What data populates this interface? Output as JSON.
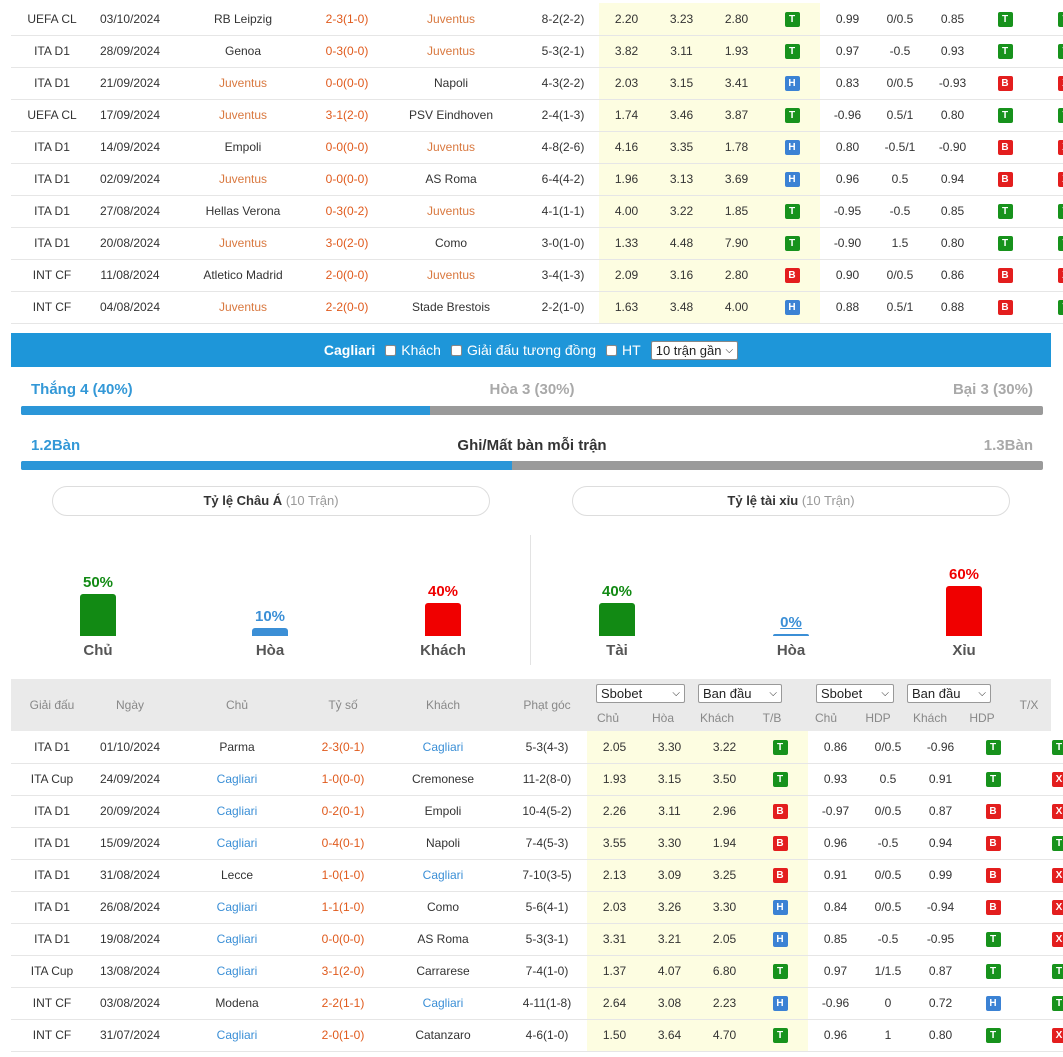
{
  "top_matches": [
    {
      "league": "UEFA CL",
      "date": "03/10/2024",
      "home": "RB Leipzig",
      "home_hl": false,
      "score": "2-3(1-0)",
      "away": "Juventus",
      "away_hl": true,
      "corner": "8-2(2-2)",
      "o1": "2.20",
      "o2": "3.23",
      "o3": "2.80",
      "tb": "T",
      "h1": "0.99",
      "h2": "0/0.5",
      "h3": "0.85",
      "hdp": "T",
      "tx": "T"
    },
    {
      "league": "ITA D1",
      "date": "28/09/2024",
      "home": "Genoa",
      "home_hl": false,
      "score": "0-3(0-0)",
      "away": "Juventus",
      "away_hl": true,
      "corner": "5-3(2-1)",
      "o1": "3.82",
      "o2": "3.11",
      "o3": "1.93",
      "tb": "T",
      "h1": "0.97",
      "h2": "-0.5",
      "h3": "0.93",
      "hdp": "T",
      "tx": "T"
    },
    {
      "league": "ITA D1",
      "date": "21/09/2024",
      "home": "Juventus",
      "home_hl": true,
      "score": "0-0(0-0)",
      "away": "Napoli",
      "away_hl": false,
      "corner": "4-3(2-2)",
      "o1": "2.03",
      "o2": "3.15",
      "o3": "3.41",
      "tb": "H",
      "h1": "0.83",
      "h2": "0/0.5",
      "h3": "-0.93",
      "hdp": "B",
      "tx": "X"
    },
    {
      "league": "UEFA CL",
      "date": "17/09/2024",
      "home": "Juventus",
      "home_hl": true,
      "score": "3-1(2-0)",
      "away": "PSV Eindhoven",
      "away_hl": false,
      "corner": "2-4(1-3)",
      "o1": "1.74",
      "o2": "3.46",
      "o3": "3.87",
      "tb": "T",
      "h1": "-0.96",
      "h2": "0.5/1",
      "h3": "0.80",
      "hdp": "T",
      "tx": "T"
    },
    {
      "league": "ITA D1",
      "date": "14/09/2024",
      "home": "Empoli",
      "home_hl": false,
      "score": "0-0(0-0)",
      "away": "Juventus",
      "away_hl": true,
      "corner": "4-8(2-6)",
      "o1": "4.16",
      "o2": "3.35",
      "o3": "1.78",
      "tb": "H",
      "h1": "0.80",
      "h2": "-0.5/1",
      "h3": "-0.90",
      "hdp": "B",
      "tx": "X"
    },
    {
      "league": "ITA D1",
      "date": "02/09/2024",
      "home": "Juventus",
      "home_hl": true,
      "score": "0-0(0-0)",
      "away": "AS Roma",
      "away_hl": false,
      "corner": "6-4(4-2)",
      "o1": "1.96",
      "o2": "3.13",
      "o3": "3.69",
      "tb": "H",
      "h1": "0.96",
      "h2": "0.5",
      "h3": "0.94",
      "hdp": "B",
      "tx": "X"
    },
    {
      "league": "ITA D1",
      "date": "27/08/2024",
      "home": "Hellas Verona",
      "home_hl": false,
      "score": "0-3(0-2)",
      "away": "Juventus",
      "away_hl": true,
      "corner": "4-1(1-1)",
      "o1": "4.00",
      "o2": "3.22",
      "o3": "1.85",
      "tb": "T",
      "h1": "-0.95",
      "h2": "-0.5",
      "h3": "0.85",
      "hdp": "T",
      "tx": "T"
    },
    {
      "league": "ITA D1",
      "date": "20/08/2024",
      "home": "Juventus",
      "home_hl": true,
      "score": "3-0(2-0)",
      "away": "Como",
      "away_hl": false,
      "corner": "3-0(1-0)",
      "o1": "1.33",
      "o2": "4.48",
      "o3": "7.90",
      "tb": "T",
      "h1": "-0.90",
      "h2": "1.5",
      "h3": "0.80",
      "hdp": "T",
      "tx": "T"
    },
    {
      "league": "INT CF",
      "date": "11/08/2024",
      "home": "Atletico Madrid",
      "home_hl": false,
      "score": "2-0(0-0)",
      "away": "Juventus",
      "away_hl": true,
      "corner": "3-4(1-3)",
      "o1": "2.09",
      "o2": "3.16",
      "o3": "2.80",
      "tb": "B",
      "h1": "0.90",
      "h2": "0/0.5",
      "h3": "0.86",
      "hdp": "B",
      "tx": "X"
    },
    {
      "league": "INT CF",
      "date": "04/08/2024",
      "home": "Juventus",
      "home_hl": true,
      "score": "2-2(0-0)",
      "away": "Stade Brestois",
      "away_hl": false,
      "corner": "2-2(1-0)",
      "o1": "1.63",
      "o2": "3.48",
      "o3": "4.00",
      "tb": "H",
      "h1": "0.88",
      "h2": "0.5/1",
      "h3": "0.88",
      "hdp": "B",
      "tx": "T"
    }
  ],
  "filter": {
    "team": "Cagliari",
    "away_label": "Khách",
    "similar_label": "Giải đấu tương đồng",
    "ht_label": "HT",
    "recent_select": "10 trận gần"
  },
  "summary": {
    "win": "Thắng 4 (40%)",
    "draw": "Hòa 3 (30%)",
    "loss": "Bại 3 (30%)",
    "win_frac": 0.4,
    "goals_for": "1.2Bàn",
    "goals_title": "Ghi/Mất bàn mỗi trận",
    "goals_against": "1.3Bàn",
    "goals_frac": 0.48
  },
  "asia": {
    "title": "Tỷ lệ Châu Á",
    "sub": "(10 Trận)",
    "items": [
      {
        "pct": "50%",
        "label": "Chủ",
        "value": 50,
        "color": "#128a14"
      },
      {
        "pct": "10%",
        "label": "Hòa",
        "value": 10,
        "color": "#3b8fd6"
      },
      {
        "pct": "40%",
        "label": "Khách",
        "value": 40,
        "color": "#f00000"
      }
    ]
  },
  "overunder": {
    "title": "Tỷ lệ tài xỉu",
    "sub": "(10 Trận)",
    "items": [
      {
        "pct": "40%",
        "label": "Tài",
        "value": 40,
        "color": "#128a14"
      },
      {
        "pct": "0%",
        "label": "Hòa",
        "value": 0,
        "color": "#3b8fd6"
      },
      {
        "pct": "60%",
        "label": "Xỉu",
        "value": 60,
        "color": "#f00000"
      }
    ]
  },
  "header": {
    "league": "Giải đấu",
    "date": "Ngày",
    "home": "Chủ",
    "score": "Tỷ số",
    "away": "Khách",
    "corner": "Phạt góc",
    "sel1": "Sbobet",
    "sel2": "Ban đầu",
    "sel3": "Sbobet",
    "sel4": "Ban đầu",
    "sub_home": "Chủ",
    "sub_draw": "Hòa",
    "sub_away": "Khách",
    "sub_tb": "T/B",
    "sub_home2": "Chủ",
    "sub_hdp": "HDP",
    "sub_away2": "Khách",
    "sub_hdp2": "HDP",
    "tx": "T/X"
  },
  "bottom_matches": [
    {
      "league": "ITA D1",
      "date": "01/10/2024",
      "home": "Parma",
      "home_hl": false,
      "score": "2-3(0-1)",
      "away": "Cagliari",
      "away_hl": true,
      "corner": "5-3(4-3)",
      "o1": "2.05",
      "o2": "3.30",
      "o3": "3.22",
      "tb": "T",
      "h1": "0.86",
      "h2": "0/0.5",
      "h3": "-0.96",
      "hdp": "T",
      "tx": "T"
    },
    {
      "league": "ITA Cup",
      "date": "24/09/2024",
      "home": "Cagliari",
      "home_hl": true,
      "score": "1-0(0-0)",
      "away": "Cremonese",
      "away_hl": false,
      "corner": "11-2(8-0)",
      "o1": "1.93",
      "o2": "3.15",
      "o3": "3.50",
      "tb": "T",
      "h1": "0.93",
      "h2": "0.5",
      "h3": "0.91",
      "hdp": "T",
      "tx": "X"
    },
    {
      "league": "ITA D1",
      "date": "20/09/2024",
      "home": "Cagliari",
      "home_hl": true,
      "score": "0-2(0-1)",
      "away": "Empoli",
      "away_hl": false,
      "corner": "10-4(5-2)",
      "o1": "2.26",
      "o2": "3.11",
      "o3": "2.96",
      "tb": "B",
      "h1": "-0.97",
      "h2": "0/0.5",
      "h3": "0.87",
      "hdp": "B",
      "tx": "X"
    },
    {
      "league": "ITA D1",
      "date": "15/09/2024",
      "home": "Cagliari",
      "home_hl": true,
      "score": "0-4(0-1)",
      "away": "Napoli",
      "away_hl": false,
      "corner": "7-4(5-3)",
      "o1": "3.55",
      "o2": "3.30",
      "o3": "1.94",
      "tb": "B",
      "h1": "0.96",
      "h2": "-0.5",
      "h3": "0.94",
      "hdp": "B",
      "tx": "T"
    },
    {
      "league": "ITA D1",
      "date": "31/08/2024",
      "home": "Lecce",
      "home_hl": false,
      "score": "1-0(1-0)",
      "away": "Cagliari",
      "away_hl": true,
      "corner": "7-10(3-5)",
      "o1": "2.13",
      "o2": "3.09",
      "o3": "3.25",
      "tb": "B",
      "h1": "0.91",
      "h2": "0/0.5",
      "h3": "0.99",
      "hdp": "B",
      "tx": "X"
    },
    {
      "league": "ITA D1",
      "date": "26/08/2024",
      "home": "Cagliari",
      "home_hl": true,
      "score": "1-1(1-0)",
      "away": "Como",
      "away_hl": false,
      "corner": "5-6(4-1)",
      "o1": "2.03",
      "o2": "3.26",
      "o3": "3.30",
      "tb": "H",
      "h1": "0.84",
      "h2": "0/0.5",
      "h3": "-0.94",
      "hdp": "B",
      "tx": "X"
    },
    {
      "league": "ITA D1",
      "date": "19/08/2024",
      "home": "Cagliari",
      "home_hl": true,
      "score": "0-0(0-0)",
      "away": "AS Roma",
      "away_hl": false,
      "corner": "5-3(3-1)",
      "o1": "3.31",
      "o2": "3.21",
      "o3": "2.05",
      "tb": "H",
      "h1": "0.85",
      "h2": "-0.5",
      "h3": "-0.95",
      "hdp": "T",
      "tx": "X"
    },
    {
      "league": "ITA Cup",
      "date": "13/08/2024",
      "home": "Cagliari",
      "home_hl": true,
      "score": "3-1(2-0)",
      "away": "Carrarese",
      "away_hl": false,
      "corner": "7-4(1-0)",
      "o1": "1.37",
      "o2": "4.07",
      "o3": "6.80",
      "tb": "T",
      "h1": "0.97",
      "h2": "1/1.5",
      "h3": "0.87",
      "hdp": "T",
      "tx": "T"
    },
    {
      "league": "INT CF",
      "date": "03/08/2024",
      "home": "Modena",
      "home_hl": false,
      "score": "2-2(1-1)",
      "away": "Cagliari",
      "away_hl": true,
      "corner": "4-11(1-8)",
      "o1": "2.64",
      "o2": "3.08",
      "o3": "2.23",
      "tb": "H",
      "h1": "-0.96",
      "h2": "0",
      "h3": "0.72",
      "hdp": "H",
      "tx": "T"
    },
    {
      "league": "INT CF",
      "date": "31/07/2024",
      "home": "Cagliari",
      "home_hl": true,
      "score": "2-0(1-0)",
      "away": "Catanzaro",
      "away_hl": false,
      "corner": "4-6(1-0)",
      "o1": "1.50",
      "o2": "3.64",
      "o3": "4.70",
      "tb": "T",
      "h1": "0.96",
      "h2": "1",
      "h3": "0.80",
      "hdp": "T",
      "tx": "X"
    }
  ]
}
